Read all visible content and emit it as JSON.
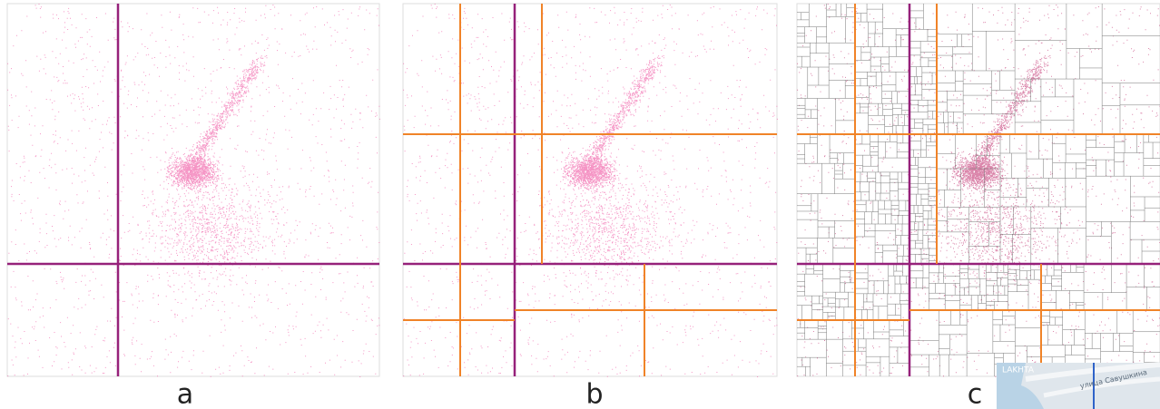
{
  "panels": [
    {
      "label": "a"
    },
    {
      "label": "b"
    },
    {
      "label": "c"
    }
  ],
  "map": {
    "district": "LAKHTA",
    "street": "улица Савушкина"
  }
}
